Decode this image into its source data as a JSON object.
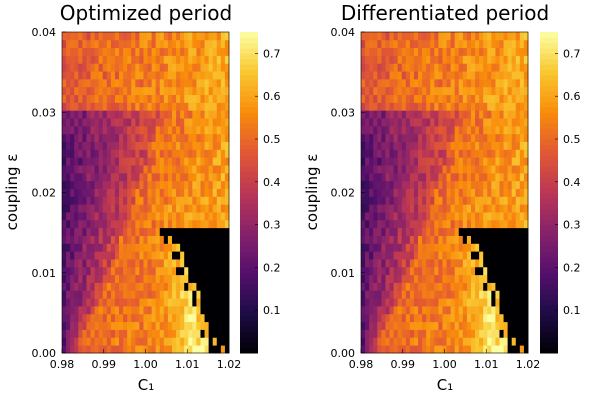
{
  "chart_data": [
    {
      "type": "heatmap",
      "title": "Optimized period",
      "xlabel": "C₁",
      "ylabel": "coupling ε",
      "xlim": [
        0.98,
        1.02
      ],
      "ylim": [
        0.0,
        0.04
      ],
      "x_ticks": [
        "0.98",
        "0.99",
        "1.00",
        "1.01",
        "1.02"
      ],
      "y_ticks": [
        "0.00",
        "0.01",
        "0.02",
        "0.03",
        "0.04"
      ],
      "colorbar": {
        "range": [
          0.0,
          0.75
        ],
        "ticks": [
          "0.1",
          "0.2",
          "0.3",
          "0.4",
          "0.5",
          "0.6",
          "0.7"
        ],
        "colormap": "inferno"
      },
      "grid_resolution": {
        "nx": 41,
        "ny": 41
      },
      "description_of_field": "period is ~0.2 (dark purple) for low C₁ and mid ε, rises to ~0.55–0.6 (orange) in the center/top, reaches ~0.7 (yellow) near C₁≈1.01 at low ε, and drops to 0 (black) in the bottom-right corner near C₁≈1.02, ε<0.015"
    },
    {
      "type": "heatmap",
      "title": "Differentiated period",
      "xlabel": "C₁",
      "ylabel": "coupling ε",
      "xlim": [
        0.98,
        1.02
      ],
      "ylim": [
        0.0,
        0.04
      ],
      "x_ticks": [
        "0.98",
        "0.99",
        "1.00",
        "1.01",
        "1.02"
      ],
      "y_ticks": [
        "0.00",
        "0.01",
        "0.02",
        "0.03",
        "0.04"
      ],
      "colorbar": {
        "range": [
          0.0,
          0.75
        ],
        "ticks": [
          "0.1",
          "0.2",
          "0.3",
          "0.4",
          "0.5",
          "0.6",
          "0.7"
        ],
        "colormap": "inferno"
      },
      "grid_resolution": {
        "nx": 41,
        "ny": 41
      }
    }
  ]
}
